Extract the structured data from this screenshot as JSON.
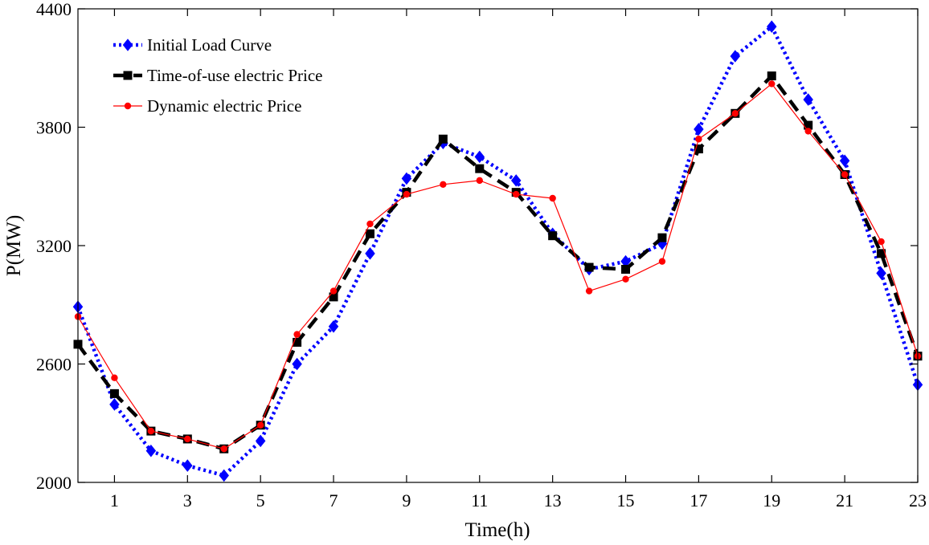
{
  "chart_data": {
    "type": "line",
    "title": "",
    "xlabel": "Time(h)",
    "ylabel": "P(MW)",
    "xlim": [
      0,
      23
    ],
    "ylim": [
      2000,
      4400
    ],
    "x_ticks": [
      1,
      3,
      5,
      7,
      9,
      11,
      13,
      15,
      17,
      19,
      21,
      23
    ],
    "y_ticks": [
      2000,
      2600,
      3200,
      3800,
      4400
    ],
    "grid": false,
    "legend_position": "top-left",
    "x": [
      0,
      1,
      2,
      3,
      4,
      5,
      6,
      7,
      8,
      9,
      10,
      11,
      12,
      13,
      14,
      15,
      16,
      17,
      18,
      19,
      20,
      21,
      22,
      23
    ],
    "series": [
      {
        "name": "Initial Load Curve",
        "color": "#0000ff",
        "marker": "diamond",
        "line_style": "dotted",
        "values": [
          2890,
          2395,
          2160,
          2085,
          2035,
          2210,
          2600,
          2790,
          3160,
          3540,
          3720,
          3650,
          3530,
          3260,
          3080,
          3120,
          3210,
          3790,
          4160,
          4310,
          3940,
          3630,
          3060,
          2495
        ]
      },
      {
        "name": "Time-of-use electric Price",
        "color": "#000000",
        "marker": "square",
        "line_style": "dashed",
        "values": [
          2700,
          2450,
          2260,
          2220,
          2170,
          2290,
          2710,
          2940,
          3260,
          3470,
          3740,
          3590,
          3470,
          3250,
          3090,
          3080,
          3240,
          3690,
          3870,
          4060,
          3810,
          3560,
          3160,
          2640
        ]
      },
      {
        "name": "Dynamic electric Price",
        "color": "#ff0000",
        "marker": "circle",
        "line_style": "solid",
        "values": [
          2840,
          2530,
          2260,
          2220,
          2170,
          2290,
          2750,
          2970,
          3310,
          3460,
          3510,
          3530,
          3460,
          3440,
          2970,
          3030,
          3120,
          3740,
          3870,
          4020,
          3780,
          3560,
          3220,
          2640
        ]
      }
    ]
  }
}
